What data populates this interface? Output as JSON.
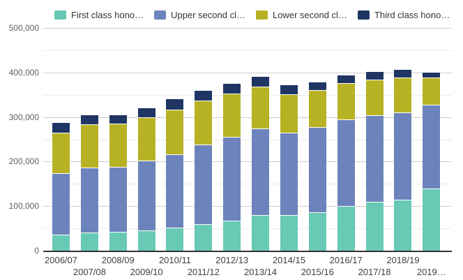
{
  "page": {
    "background": "#ffffff"
  },
  "legend": {
    "position": "top",
    "items": [
      {
        "label": "First class hono…",
        "color": "#68C9B5"
      },
      {
        "label": "Upper second cl…",
        "color": "#6C84BB"
      },
      {
        "label": "Lower second cl…",
        "color": "#B7B224"
      },
      {
        "label": "Third class hono…",
        "color": "#1F3563"
      }
    ]
  },
  "axes": {
    "y_tick_labels": [
      "500,000",
      "400,000",
      "300,000",
      "200,000",
      "100,000",
      "0"
    ],
    "axis_line_color": "#333333",
    "major_grid_color": "#cccccc",
    "minor_grid_color": "#ebebeb",
    "y_label_color": "#616161",
    "x_label_color": "#404040"
  },
  "chart_data": {
    "type": "bar",
    "stacked": true,
    "title": "",
    "xlabel": "",
    "ylabel": "",
    "ylim": [
      0,
      500000
    ],
    "y_major_tick": 100000,
    "y_minor_tick": 50000,
    "grid": true,
    "legend_position": "top",
    "categories": [
      "2006/07",
      "2007/08",
      "2008/09",
      "2009/10",
      "2010/11",
      "2011/12",
      "2012/13",
      "2013/14",
      "2014/15",
      "2015/16",
      "2016/17",
      "2017/18",
      "2018/19",
      "2019…"
    ],
    "series": [
      {
        "name": "First class hono…",
        "color": "#68C9B5",
        "values": [
          36000,
          40000,
          42000,
          45000,
          51500,
          59000,
          67000,
          80000,
          80000,
          87000,
          100000,
          110000,
          114000,
          139000
        ]
      },
      {
        "name": "Upper second cl…",
        "color": "#6C84BB",
        "values": [
          137500,
          147000,
          146500,
          157500,
          165500,
          178500,
          189000,
          195000,
          185500,
          190000,
          195000,
          194500,
          197000,
          189000
        ]
      },
      {
        "name": "Lower second cl…",
        "color": "#B7B224",
        "values": [
          92000,
          96500,
          96500,
          97500,
          99000,
          99500,
          97000,
          94000,
          86000,
          83000,
          81500,
          79000,
          78500,
          61500
        ]
      },
      {
        "name": "Third class hono…",
        "color": "#1F3563",
        "values": [
          23500,
          22000,
          20500,
          21000,
          25000,
          23500,
          23500,
          22500,
          21500,
          20000,
          19000,
          19000,
          18000,
          12500
        ]
      }
    ]
  }
}
